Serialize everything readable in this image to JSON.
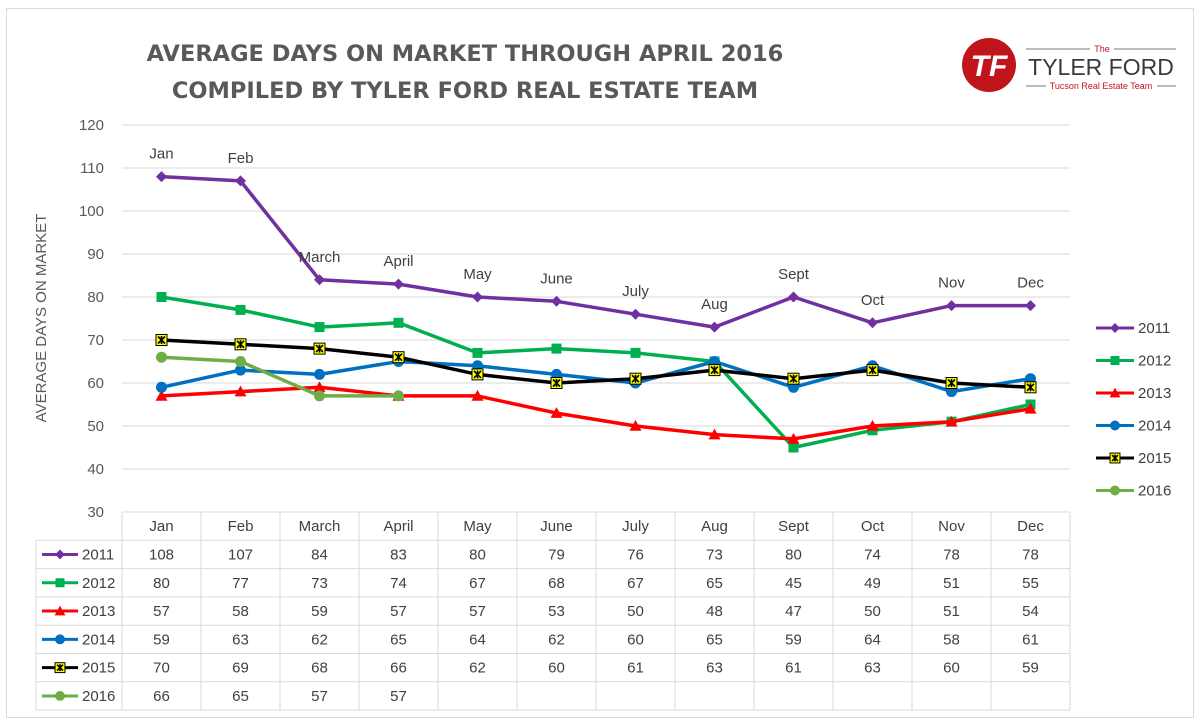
{
  "title_lines": [
    "AVERAGE DAYS ON MARKET THROUGH APRIL 2016",
    "COMPILED BY TYLER FORD REAL ESTATE TEAM"
  ],
  "logo": {
    "monogram": "TF",
    "the": "The",
    "name": "TYLER FORD",
    "tagline": "Tucson Real Estate Team",
    "colors": {
      "brand_red": "#c0161b",
      "text": "#3a3a3a"
    }
  },
  "chart_data": {
    "type": "line",
    "title": "AVERAGE DAYS ON MARKET THROUGH APRIL 2016 / COMPILED BY TYLER FORD REAL ESTATE TEAM",
    "ylabel": "AVERAGE DAYS ON MARKET",
    "ylim": [
      30,
      120
    ],
    "yticks": [
      30,
      40,
      50,
      60,
      70,
      80,
      90,
      100,
      110,
      120
    ],
    "grid": true,
    "legend_position": "right",
    "categories": [
      "Jan",
      "Feb",
      "March",
      "April",
      "May",
      "June",
      "July",
      "Aug",
      "Sept",
      "Oct",
      "Nov",
      "Dec"
    ],
    "point_labels": {
      "series": "2011",
      "labels": [
        "Jan",
        "Feb",
        "March",
        "April",
        "May",
        "June",
        "July",
        "Aug",
        "Sept",
        "Oct",
        "Nov",
        "Dec"
      ]
    },
    "series": [
      {
        "name": "2011",
        "color": "#7030a0",
        "marker": "diamond",
        "values": [
          108,
          107,
          84,
          83,
          80,
          79,
          76,
          73,
          80,
          74,
          78,
          78
        ]
      },
      {
        "name": "2012",
        "color": "#00b050",
        "marker": "square",
        "values": [
          80,
          77,
          73,
          74,
          67,
          68,
          67,
          65,
          45,
          49,
          51,
          55
        ]
      },
      {
        "name": "2013",
        "color": "#ff0000",
        "marker": "triangle",
        "values": [
          57,
          58,
          59,
          57,
          57,
          53,
          50,
          48,
          47,
          50,
          51,
          54
        ]
      },
      {
        "name": "2014",
        "color": "#0070c0",
        "marker": "circle",
        "values": [
          59,
          63,
          62,
          65,
          64,
          62,
          60,
          65,
          59,
          64,
          58,
          61
        ]
      },
      {
        "name": "2015",
        "color": "#000000",
        "marker": "star",
        "marker_fill": "#ffff00",
        "values": [
          70,
          69,
          68,
          66,
          62,
          60,
          61,
          63,
          61,
          63,
          60,
          59
        ]
      },
      {
        "name": "2016",
        "color": "#70ad47",
        "marker": "circle",
        "values": [
          66,
          65,
          57,
          57,
          null,
          null,
          null,
          null,
          null,
          null,
          null,
          null
        ]
      }
    ],
    "data_table": true
  }
}
